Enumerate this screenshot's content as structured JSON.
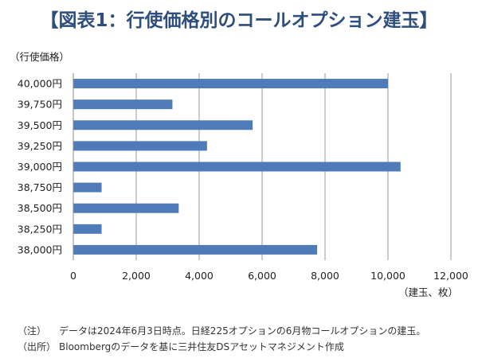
{
  "title": "【図表1：行使価格別のコールオプション建玉】",
  "chart_data": {
    "type": "bar",
    "orientation": "horizontal",
    "title": "【図表1：行使価格別のコールオプション建玉】",
    "ylabel": "（行使価格）",
    "xlabel": "（建玉、枚）",
    "categories": [
      "40,000円",
      "39,750円",
      "39,500円",
      "39,250円",
      "39,000円",
      "38,750円",
      "38,500円",
      "38,250円",
      "38,000円"
    ],
    "values": [
      10000,
      3150,
      5700,
      4250,
      10400,
      900,
      3350,
      900,
      7750
    ],
    "xlim": [
      0,
      12000
    ],
    "xticks": [
      0,
      2000,
      4000,
      6000,
      8000,
      10000,
      12000
    ],
    "xtick_labels": [
      "0",
      "2,000",
      "4,000",
      "6,000",
      "8,000",
      "10,000",
      "12,000"
    ],
    "grid": true,
    "bar_color": "#4F7CB9"
  },
  "notes": [
    {
      "head": "（注）",
      "text": "データは2024年6月3日時点。日経225オプションの6月物コールオプションの建玉。"
    },
    {
      "head": "（出所）",
      "text": "Bloombergのデータを基に三井住友DSアセットマネジメント作成"
    }
  ]
}
